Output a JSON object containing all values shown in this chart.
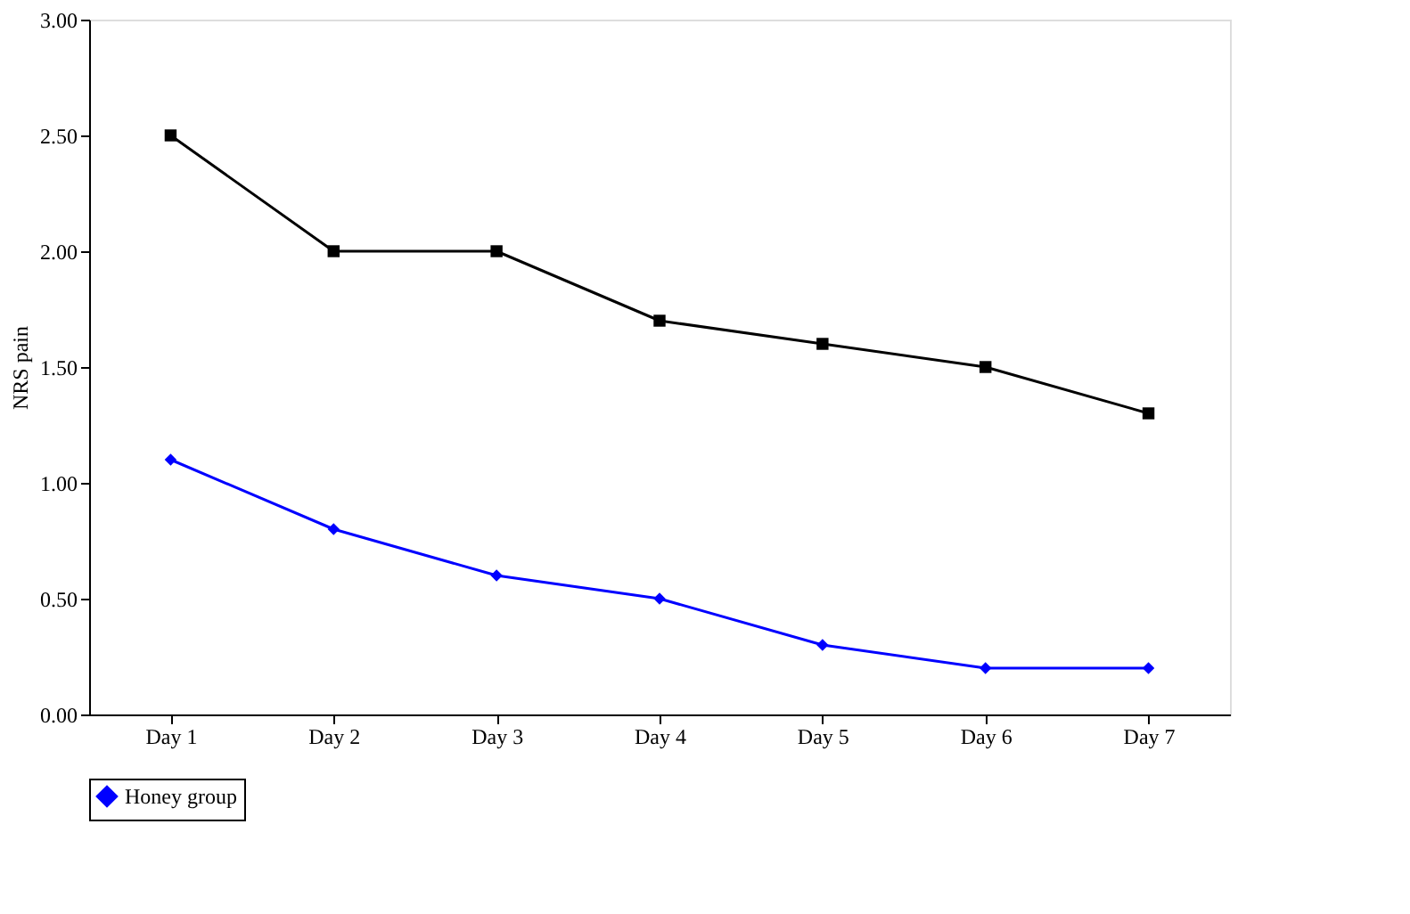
{
  "chart_data": {
    "type": "line",
    "ylabel": "NRS pain",
    "categories": [
      "Day 1",
      "Day 2",
      "Day 3",
      "Day 4",
      "Day 5",
      "Day 6",
      "Day 7"
    ],
    "series": [
      {
        "name": "Honey group",
        "color": "#0000ff",
        "marker": "diamond",
        "values": [
          1.1,
          0.8,
          0.6,
          0.5,
          0.3,
          0.2,
          0.2
        ]
      },
      {
        "color": "#000000",
        "marker": "square",
        "values": [
          2.5,
          2.0,
          2.0,
          1.7,
          1.6,
          1.5,
          1.3
        ]
      }
    ],
    "ylim": [
      0,
      3
    ],
    "yticks": [
      {
        "value": 0,
        "label": "0.00"
      },
      {
        "value": 0.5,
        "label": "0.50"
      },
      {
        "value": 1,
        "label": "1.00"
      },
      {
        "value": 1.5,
        "label": "1.50"
      },
      {
        "value": 2,
        "label": "2.00"
      },
      {
        "value": 2.5,
        "label": "2.50"
      },
      {
        "value": 3,
        "label": "3.00"
      }
    ],
    "grid": false,
    "legend": "bottom"
  }
}
